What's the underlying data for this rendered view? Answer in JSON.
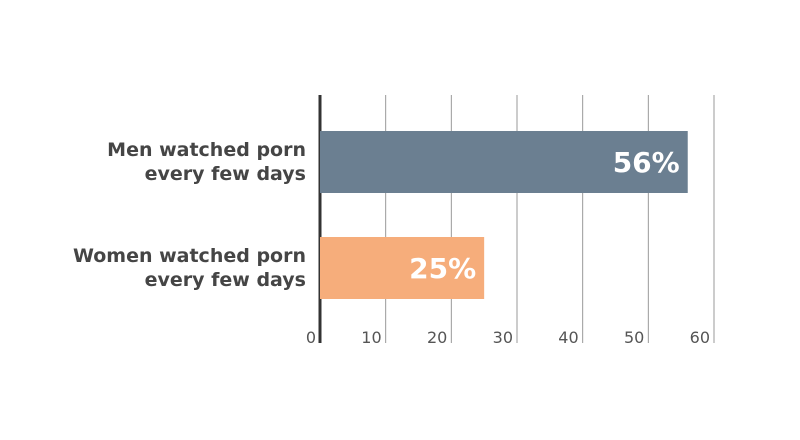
{
  "chart_data": {
    "type": "bar",
    "orientation": "horizontal",
    "categories": [
      "Men watched porn every few days",
      "Women watched porn every few days"
    ],
    "series": [
      {
        "values": [
          56,
          25
        ],
        "value_labels": [
          "56%",
          "25%"
        ],
        "colors": [
          "#6b7f91",
          "#f6ad7b"
        ]
      }
    ],
    "xlim": [
      0,
      60
    ],
    "xticks": [
      0,
      10,
      20,
      30,
      40,
      50,
      60
    ],
    "grid": true
  }
}
